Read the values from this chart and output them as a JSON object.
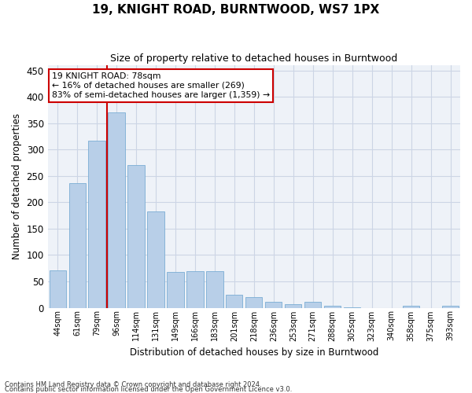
{
  "title1": "19, KNIGHT ROAD, BURNTWOOD, WS7 1PX",
  "title2": "Size of property relative to detached houses in Burntwood",
  "xlabel": "Distribution of detached houses by size in Burntwood",
  "ylabel": "Number of detached properties",
  "categories": [
    "44sqm",
    "61sqm",
    "79sqm",
    "96sqm",
    "114sqm",
    "131sqm",
    "149sqm",
    "166sqm",
    "183sqm",
    "201sqm",
    "218sqm",
    "236sqm",
    "253sqm",
    "271sqm",
    "288sqm",
    "305sqm",
    "323sqm",
    "340sqm",
    "358sqm",
    "375sqm",
    "393sqm"
  ],
  "values": [
    71,
    237,
    317,
    370,
    270,
    182,
    68,
    69,
    70,
    24,
    20,
    11,
    6,
    11,
    4,
    1,
    0,
    0,
    4,
    0,
    4
  ],
  "bar_color": "#b8cfe8",
  "bar_edge_color": "#7aadd4",
  "vline_color": "#cc0000",
  "vline_bar_index": 2,
  "annotation_line1": "19 KNIGHT ROAD: 78sqm",
  "annotation_line2": "← 16% of detached houses are smaller (269)",
  "annotation_line3": "83% of semi-detached houses are larger (1,359) →",
  "annotation_box_color": "#ffffff",
  "annotation_box_edge": "#cc0000",
  "ylim": [
    0,
    460
  ],
  "yticks": [
    0,
    50,
    100,
    150,
    200,
    250,
    300,
    350,
    400,
    450
  ],
  "grid_color": "#ccd5e5",
  "background_color": "#eef2f8",
  "footer_line1": "Contains HM Land Registry data © Crown copyright and database right 2024.",
  "footer_line2": "Contains public sector information licensed under the Open Government Licence v3.0."
}
